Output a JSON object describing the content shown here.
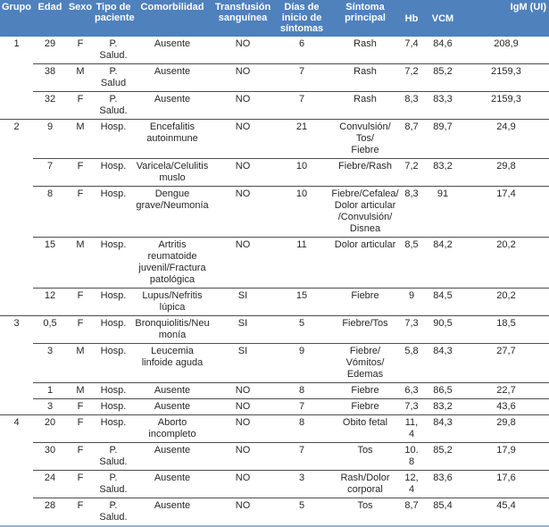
{
  "table": {
    "title": "patient-data-table",
    "colors": {
      "header_bg": "#4f81bd",
      "header_text": "#ffffff",
      "row_separator": "#4d4d4d",
      "bottom_rule": "#9bb3cb",
      "body_text": "#262626"
    },
    "columns": [
      "Grupo",
      "Edad",
      "Sexo",
      "Tipo de paciente",
      "Comorbilidad",
      "Transfusión sanguínea",
      "Días de inicio de síntomas",
      "Síntoma principal",
      "Hb",
      "VCM",
      "IgM (UI)"
    ],
    "groups": [
      {
        "grupo": "1",
        "rows": [
          {
            "edad": "29",
            "sexo": "F",
            "tipo": "P. Salud.",
            "comorbilidad": "Ausente",
            "transfusion": "NO",
            "dias": "6",
            "sintoma": "Rash",
            "hb": "7,4",
            "vcm": "84,6",
            "igm": "208,9"
          },
          {
            "edad": "38",
            "sexo": "M",
            "tipo": "P. Salud",
            "comorbilidad": "Ausente",
            "transfusion": "NO",
            "dias": "7",
            "sintoma": "Rash",
            "hb": "7,2",
            "vcm": "85,2",
            "igm": "2159,3"
          },
          {
            "edad": "32",
            "sexo": "F",
            "tipo": "P. Salud.",
            "comorbilidad": "Ausente",
            "transfusion": "NO",
            "dias": "7",
            "sintoma": "Rash",
            "hb": "8,3",
            "vcm": "83,3",
            "igm": "2159,3"
          }
        ]
      },
      {
        "grupo": "2",
        "rows": [
          {
            "edad": "9",
            "sexo": "M",
            "tipo": "Hosp.",
            "comorbilidad": "Encefalitis autoinmune",
            "transfusion": "NO",
            "dias": "21",
            "sintoma": "Convulsión/\nTos/\nFiebre",
            "hb": "8,7",
            "vcm": "89,7",
            "igm": "24,9"
          },
          {
            "edad": "7",
            "sexo": "F",
            "tipo": "Hosp.",
            "comorbilidad": "Varicela/Celulitis muslo",
            "transfusion": "NO",
            "dias": "10",
            "sintoma": "Fiebre/Rash",
            "hb": "7,2",
            "vcm": "83,2",
            "igm": "29,8"
          },
          {
            "edad": "8",
            "sexo": "F",
            "tipo": "Hosp.",
            "comorbilidad": "Dengue grave/Neumonía",
            "transfusion": "NO",
            "dias": "10",
            "sintoma": "Fiebre/Cefalea/Dolor articular\n/Convulsión/\nDisnea",
            "hb": "8,3",
            "vcm": "91",
            "igm": "17,4"
          },
          {
            "edad": "15",
            "sexo": "M",
            "tipo": "Hosp.",
            "comorbilidad": "Artritis reumatoide juvenil/Fractura patológica",
            "transfusion": "NO",
            "dias": "11",
            "sintoma": "Dolor articular",
            "hb": "8,5",
            "vcm": "84,2",
            "igm": "20,2"
          },
          {
            "edad": "12",
            "sexo": "F",
            "tipo": "Hosp.",
            "comorbilidad": "Lupus/Nefritis lúpica",
            "transfusion": "SI",
            "dias": "15",
            "sintoma": "Fiebre",
            "hb": "9",
            "vcm": "84,5",
            "igm": "20,2"
          }
        ]
      },
      {
        "grupo": "3",
        "rows": [
          {
            "edad": "0,5",
            "sexo": "F",
            "tipo": "Hosp.",
            "comorbilidad": "Bronquiolitis/Neumonía",
            "transfusion": "SI",
            "dias": "5",
            "sintoma": "Fiebre/Tos",
            "hb": "7,3",
            "vcm": "90,5",
            "igm": "18,5"
          },
          {
            "edad": "3",
            "sexo": "M",
            "tipo": "Hosp.",
            "comorbilidad": "Leucemia linfoide aguda",
            "transfusion": "SI",
            "dias": "9",
            "sintoma": "Fiebre/\nVómitos/\nEdemas",
            "hb": "5,8",
            "vcm": "84,3",
            "igm": "27,7"
          },
          {
            "edad": "1",
            "sexo": "M",
            "tipo": "Hosp.",
            "comorbilidad": "Ausente",
            "transfusion": "NO",
            "dias": "8",
            "sintoma": "Fiebre",
            "hb": "6,3",
            "vcm": "86,5",
            "igm": "22,7"
          },
          {
            "edad": "3",
            "sexo": "F",
            "tipo": "Hosp.",
            "comorbilidad": "Ausente",
            "transfusion": "NO",
            "dias": "7",
            "sintoma": "Fiebre",
            "hb": "7,3",
            "vcm": "83,2",
            "igm": "43,6"
          }
        ]
      },
      {
        "grupo": "4",
        "rows": [
          {
            "edad": "20",
            "sexo": "F",
            "tipo": "Hosp.",
            "comorbilidad": "Aborto incompleto",
            "transfusion": "NO",
            "dias": "8",
            "sintoma": "Obito fetal",
            "hb": "11,4",
            "vcm": "84,3",
            "igm": "29,8"
          },
          {
            "edad": "30",
            "sexo": "F",
            "tipo": "P. Salud.",
            "comorbilidad": "Ausente",
            "transfusion": "NO",
            "dias": "7",
            "sintoma": "Tos",
            "hb": "10.8",
            "vcm": "85,2",
            "igm": "17,9"
          },
          {
            "edad": "24",
            "sexo": "F",
            "tipo": "P. Salud.",
            "comorbilidad": "Ausente",
            "transfusion": "NO",
            "dias": "3",
            "sintoma": "Rash/Dolor corporal",
            "hb": "12,4",
            "vcm": "83,6",
            "igm": "17,6"
          },
          {
            "edad": "28",
            "sexo": "F",
            "tipo": "P. Salud.",
            "comorbilidad": "Ausente",
            "transfusion": "NO",
            "dias": "5",
            "sintoma": "Tos",
            "hb": "8,7",
            "vcm": "85,4",
            "igm": "45,4"
          }
        ]
      }
    ]
  }
}
